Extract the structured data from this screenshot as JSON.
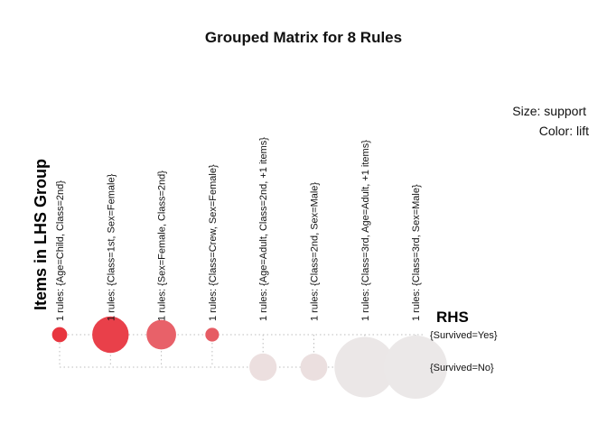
{
  "chart_data": {
    "type": "scatter",
    "title": "Grouped Matrix for 8 Rules",
    "ylabel": "Items in LHS Group",
    "rhs_label": "RHS",
    "legend": {
      "size": "Size: support",
      "color": "Color: lift",
      "placement": "top-right"
    },
    "lhs_groups": [
      "1 rules: {Age=Child, Class=2nd}",
      "1 rules: {Class=1st, Sex=Female}",
      "1 rules: {Sex=Female, Class=2nd}",
      "1 rules: {Class=Crew, Sex=Female}",
      "1 rules: {Age=Adult, Class=2nd, +1 items}",
      "1 rules: {Class=2nd, Sex=Male}",
      "1 rules: {Class=3rd, Age=Adult, +1 items}",
      "1 rules: {Class=3rd, Sex=Male}"
    ],
    "rhs": [
      "{Survived=Yes}",
      "{Survived=No}"
    ],
    "points": [
      {
        "lhs": 0,
        "rhs": 0,
        "support": 0.011,
        "lift": 3.1,
        "color": "#e8363f"
      },
      {
        "lhs": 1,
        "rhs": 0,
        "support": 0.064,
        "lift": 3.0,
        "color": "#e9404a"
      },
      {
        "lhs": 2,
        "rhs": 0,
        "support": 0.042,
        "lift": 2.7,
        "color": "#e86169"
      },
      {
        "lhs": 3,
        "rhs": 0,
        "support": 0.009,
        "lift": 2.7,
        "color": "#e65c64"
      },
      {
        "lhs": 4,
        "rhs": 1,
        "support": 0.036,
        "lift": 1.25,
        "color": "#ecdfdf"
      },
      {
        "lhs": 5,
        "rhs": 1,
        "support": 0.035,
        "lift": 1.22,
        "color": "#ebdfdf"
      },
      {
        "lhs": 6,
        "rhs": 1,
        "support": 0.176,
        "lift": 1.15,
        "color": "#ebe7e7"
      },
      {
        "lhs": 7,
        "rhs": 1,
        "support": 0.192,
        "lift": 1.14,
        "color": "#ebe8e8"
      }
    ]
  }
}
